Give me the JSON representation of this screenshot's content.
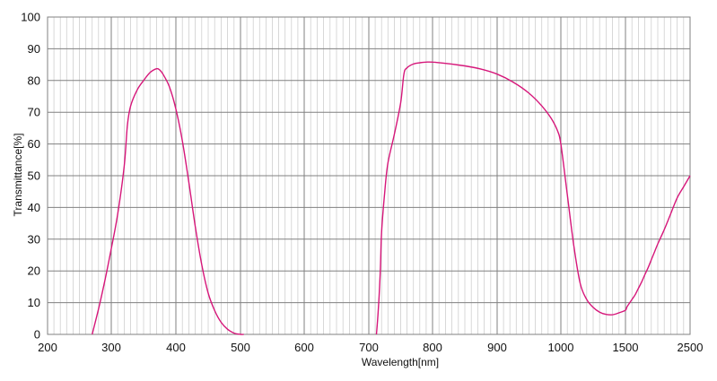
{
  "chart_data": {
    "type": "line",
    "title": "",
    "xlabel": "Wavelength[nm]",
    "ylabel": "Transmittance[%]",
    "ylim": [
      0,
      100
    ],
    "y_ticks": [
      "0",
      "10",
      "20",
      "30",
      "40",
      "50",
      "60",
      "70",
      "80",
      "90",
      "100"
    ],
    "x_tick_labels": [
      "200",
      "300",
      "400",
      "500",
      "600",
      "700",
      "800",
      "900",
      "1000",
      "1500",
      "2500"
    ],
    "x_axis_note": "piecewise linear: 200–1000 nm in 100 nm steps, then 1000–1500 and 1500–2500 nm segments",
    "grid": true,
    "legend": "none",
    "line_color": "#d6177a",
    "grid_major_color": "#808080",
    "grid_minor_color": "#cfcfcf",
    "series": [
      {
        "x": [
          270,
          280,
          290,
          300,
          310,
          320,
          325,
          330,
          340,
          350,
          360,
          370,
          375,
          380,
          390,
          400,
          410,
          420,
          430,
          440,
          450,
          460,
          470,
          480,
          490,
          500,
          505
        ],
        "values": [
          0,
          8,
          17,
          27,
          38,
          53,
          66,
          72,
          77,
          80,
          82.5,
          83.7,
          83.3,
          82,
          78,
          71,
          61,
          48,
          34,
          22,
          13,
          7.5,
          3.8,
          1.6,
          0.4,
          0,
          0
        ]
      },
      {
        "x": [
          712,
          715,
          718,
          720,
          725,
          730,
          740,
          750,
          755,
          760,
          770,
          780,
          790,
          800,
          820,
          850,
          875,
          900,
          925,
          950,
          970,
          985,
          995,
          1000,
          1050,
          1100,
          1150,
          1200,
          1250,
          1300,
          1350,
          1400,
          1450,
          1500,
          1520,
          1550,
          1600,
          1650,
          1700,
          1750,
          1800,
          1850,
          1900,
          1950,
          2000,
          2100,
          2200,
          2300,
          2400,
          2500
        ],
        "values": [
          0,
          8,
          20,
          32,
          45,
          54,
          63,
          73,
          82,
          84,
          85.2,
          85.6,
          85.8,
          85.8,
          85.4,
          84.6,
          83.6,
          82,
          79.5,
          76,
          72,
          68,
          64,
          60,
          44,
          28,
          16,
          11,
          8.5,
          7,
          6.3,
          6.2,
          6.8,
          7.6,
          8.5,
          9.5,
          11,
          12.5,
          14.5,
          16.5,
          18.8,
          21,
          23.5,
          26,
          28.5,
          33,
          38,
          43,
          46.5,
          50
        ]
      }
    ]
  }
}
